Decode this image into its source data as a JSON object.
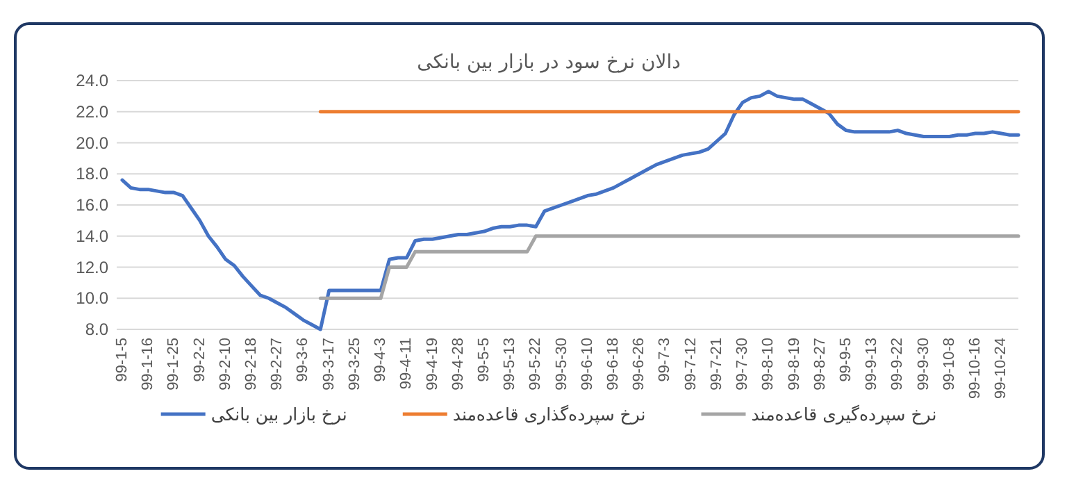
{
  "chart_data": {
    "type": "line",
    "title": "دالان نرخ سود در بازار بین بانکی",
    "categories": [
      "99-1-5",
      null,
      null,
      "99-1-16",
      null,
      null,
      "99-1-25",
      null,
      null,
      "99-2-2",
      null,
      null,
      "99-2-10",
      null,
      null,
      "99-2-18",
      null,
      null,
      "99-2-27",
      null,
      null,
      "99-3-6",
      null,
      null,
      "99-3-17",
      null,
      null,
      "99-3-25",
      null,
      null,
      "99-4-3",
      null,
      null,
      "99-4-11",
      null,
      null,
      "99-4-19",
      null,
      null,
      "99-4-28",
      null,
      null,
      "99-5-5",
      null,
      null,
      "99-5-13",
      null,
      null,
      "99-5-22",
      null,
      null,
      "99-5-30",
      null,
      null,
      "99-6-10",
      null,
      null,
      "99-6-18",
      null,
      null,
      "99-6-26",
      null,
      null,
      "99-7-3",
      null,
      null,
      "99-7-12",
      null,
      null,
      "99-7-21",
      null,
      null,
      "99-7-30",
      null,
      null,
      "99-8-10",
      null,
      null,
      "99-8-19",
      null,
      null,
      "99-8-27",
      null,
      null,
      "99-9-5",
      null,
      null,
      "99-9-13",
      null,
      null,
      "99-9-22",
      null,
      null,
      "99-9-30",
      null,
      null,
      "99-10-8",
      null,
      null,
      "99-10-16",
      null,
      null,
      "99-10-24",
      null,
      null
    ],
    "series": [
      {
        "name": "نرخ بازار بین بانکی",
        "color": "#4472c4",
        "values": [
          17.6,
          17.1,
          17.0,
          17.0,
          16.9,
          16.8,
          16.8,
          16.6,
          15.8,
          15.0,
          14.0,
          13.3,
          12.5,
          12.1,
          11.4,
          10.8,
          10.2,
          10.0,
          9.7,
          9.4,
          9.0,
          8.6,
          8.3,
          8.0,
          10.5,
          10.5,
          10.5,
          10.5,
          10.5,
          10.5,
          10.5,
          12.5,
          12.6,
          12.6,
          13.7,
          13.8,
          13.8,
          13.9,
          14.0,
          14.1,
          14.1,
          14.2,
          14.3,
          14.5,
          14.6,
          14.6,
          14.7,
          14.7,
          14.6,
          15.6,
          15.8,
          16.0,
          16.2,
          16.4,
          16.6,
          16.7,
          16.9,
          17.1,
          17.4,
          17.7,
          18.0,
          18.3,
          18.6,
          18.8,
          19.0,
          19.2,
          19.3,
          19.4,
          19.6,
          20.1,
          20.6,
          21.8,
          22.6,
          22.9,
          23.0,
          23.3,
          23.0,
          22.9,
          22.8,
          22.8,
          22.5,
          22.2,
          21.9,
          21.2,
          20.8,
          20.7,
          20.7,
          20.7,
          20.7,
          20.7,
          20.8,
          20.6,
          20.5,
          20.4,
          20.4,
          20.4,
          20.4,
          20.5,
          20.5,
          20.6,
          20.6,
          20.7,
          20.6,
          20.5,
          20.5
        ]
      },
      {
        "name": "نرخ سپرده‌گذاری قاعده‌مند",
        "color": "#ed7d31",
        "values": [
          null,
          null,
          null,
          null,
          null,
          null,
          null,
          null,
          null,
          null,
          null,
          null,
          null,
          null,
          null,
          null,
          null,
          null,
          null,
          null,
          null,
          null,
          null,
          22.0,
          22.0,
          22.0,
          22.0,
          22.0,
          22.0,
          22.0,
          22.0,
          22.0,
          22.0,
          22.0,
          22.0,
          22.0,
          22.0,
          22.0,
          22.0,
          22.0,
          22.0,
          22.0,
          22.0,
          22.0,
          22.0,
          22.0,
          22.0,
          22.0,
          22.0,
          22.0,
          22.0,
          22.0,
          22.0,
          22.0,
          22.0,
          22.0,
          22.0,
          22.0,
          22.0,
          22.0,
          22.0,
          22.0,
          22.0,
          22.0,
          22.0,
          22.0,
          22.0,
          22.0,
          22.0,
          22.0,
          22.0,
          22.0,
          22.0,
          22.0,
          22.0,
          22.0,
          22.0,
          22.0,
          22.0,
          22.0,
          22.0,
          22.0,
          22.0,
          22.0,
          22.0,
          22.0,
          22.0,
          22.0,
          22.0,
          22.0,
          22.0,
          22.0,
          22.0,
          22.0,
          22.0,
          22.0,
          22.0,
          22.0,
          22.0,
          22.0,
          22.0,
          22.0,
          22.0,
          22.0,
          22.0
        ]
      },
      {
        "name": "نرخ سپرده‌گیری قاعده‌مند",
        "color": "#a5a5a5",
        "values": [
          null,
          null,
          null,
          null,
          null,
          null,
          null,
          null,
          null,
          null,
          null,
          null,
          null,
          null,
          null,
          null,
          null,
          null,
          null,
          null,
          null,
          null,
          null,
          10.0,
          10.0,
          10.0,
          10.0,
          10.0,
          10.0,
          10.0,
          10.0,
          12.0,
          12.0,
          12.0,
          13.0,
          13.0,
          13.0,
          13.0,
          13.0,
          13.0,
          13.0,
          13.0,
          13.0,
          13.0,
          13.0,
          13.0,
          13.0,
          13.0,
          14.0,
          14.0,
          14.0,
          14.0,
          14.0,
          14.0,
          14.0,
          14.0,
          14.0,
          14.0,
          14.0,
          14.0,
          14.0,
          14.0,
          14.0,
          14.0,
          14.0,
          14.0,
          14.0,
          14.0,
          14.0,
          14.0,
          14.0,
          14.0,
          14.0,
          14.0,
          14.0,
          14.0,
          14.0,
          14.0,
          14.0,
          14.0,
          14.0,
          14.0,
          14.0,
          14.0,
          14.0,
          14.0,
          14.0,
          14.0,
          14.0,
          14.0,
          14.0,
          14.0,
          14.0,
          14.0,
          14.0,
          14.0,
          14.0,
          14.0,
          14.0,
          14.0,
          14.0,
          14.0,
          14.0,
          14.0,
          14.0
        ]
      }
    ],
    "ylim": [
      8,
      24
    ],
    "yticks": [
      {
        "value": 8,
        "label": "8.0"
      },
      {
        "value": 10,
        "label": "10.0"
      },
      {
        "value": 12,
        "label": "12.0"
      },
      {
        "value": 14,
        "label": "14.0"
      },
      {
        "value": 16,
        "label": "16.0"
      },
      {
        "value": 18,
        "label": "18.0"
      },
      {
        "value": 20,
        "label": "20.0"
      },
      {
        "value": 22,
        "label": "22.0"
      },
      {
        "value": 24,
        "label": "24.0"
      }
    ],
    "grid": "y",
    "legend": "bottom"
  }
}
